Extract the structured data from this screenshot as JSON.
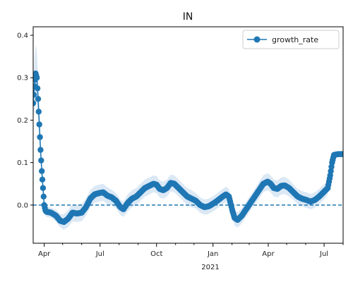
{
  "chart_data": {
    "type": "line",
    "title": "IN",
    "xlabel": "",
    "ylabel": "",
    "x_axis": {
      "type": "date",
      "range": [
        "2020-03-14",
        "2021-08-01"
      ],
      "ticks": [
        {
          "label": "Apr",
          "date": "2020-04-01"
        },
        {
          "label": "Jul",
          "date": "2020-07-01"
        },
        {
          "label": "Oct",
          "date": "2020-10-01"
        },
        {
          "label": "Jan",
          "date": "2021-01-01"
        },
        {
          "label": "Apr",
          "date": "2021-04-01"
        },
        {
          "label": "Jul",
          "date": "2021-07-01"
        }
      ],
      "year_label": "2021",
      "minor_ticks_monthly": true
    },
    "ylim": [
      -0.09,
      0.42
    ],
    "yticks": [
      {
        "label": "0.0",
        "value": 0.0
      },
      {
        "label": "0.1",
        "value": 0.1
      },
      {
        "label": "0.2",
        "value": 0.2
      },
      {
        "label": "0.3",
        "value": 0.3
      },
      {
        "label": "0.4",
        "value": 0.4
      }
    ],
    "reference_line": {
      "y": 0.0,
      "style": "dashed",
      "color": "#1f77b4"
    },
    "legend": {
      "position": "top-right",
      "entries": [
        "growth_rate"
      ]
    },
    "grid": false,
    "colors": {
      "series": "#1f77b4",
      "band": "#dbe8f5",
      "axis": "#000000"
    },
    "series": [
      {
        "name": "growth_rate",
        "marker": "circle",
        "points": [
          [
            "2020-03-14",
            0.24
          ],
          [
            "2020-03-16",
            0.28
          ],
          [
            "2020-03-18",
            0.31
          ],
          [
            "2020-03-20",
            0.3
          ],
          [
            "2020-03-22",
            0.25
          ],
          [
            "2020-03-24",
            0.19
          ],
          [
            "2020-03-26",
            0.13
          ],
          [
            "2020-03-28",
            0.08
          ],
          [
            "2020-03-30",
            0.04
          ],
          [
            "2020-04-01",
            0.0
          ],
          [
            "2020-04-03",
            -0.013
          ],
          [
            "2020-04-05",
            -0.016
          ],
          [
            "2020-04-12",
            -0.018
          ],
          [
            "2020-04-20",
            -0.025
          ],
          [
            "2020-04-27",
            -0.037
          ],
          [
            "2020-05-03",
            -0.04
          ],
          [
            "2020-05-10",
            -0.032
          ],
          [
            "2020-05-17",
            -0.018
          ],
          [
            "2020-05-24",
            -0.02
          ],
          [
            "2020-06-01",
            -0.018
          ],
          [
            "2020-06-08",
            -0.005
          ],
          [
            "2020-06-15",
            0.015
          ],
          [
            "2020-06-22",
            0.025
          ],
          [
            "2020-06-29",
            0.028
          ],
          [
            "2020-07-06",
            0.03
          ],
          [
            "2020-07-13",
            0.022
          ],
          [
            "2020-07-20",
            0.018
          ],
          [
            "2020-07-27",
            0.01
          ],
          [
            "2020-08-03",
            -0.005
          ],
          [
            "2020-08-08",
            -0.01
          ],
          [
            "2020-08-15",
            0.005
          ],
          [
            "2020-08-22",
            0.015
          ],
          [
            "2020-08-29",
            0.02
          ],
          [
            "2020-09-05",
            0.03
          ],
          [
            "2020-09-12",
            0.04
          ],
          [
            "2020-09-19",
            0.045
          ],
          [
            "2020-09-26",
            0.05
          ],
          [
            "2020-10-01",
            0.048
          ],
          [
            "2020-10-06",
            0.038
          ],
          [
            "2020-10-12",
            0.035
          ],
          [
            "2020-10-18",
            0.04
          ],
          [
            "2020-10-24",
            0.052
          ],
          [
            "2020-10-30",
            0.05
          ],
          [
            "2020-11-06",
            0.04
          ],
          [
            "2020-11-13",
            0.03
          ],
          [
            "2020-11-20",
            0.02
          ],
          [
            "2020-11-27",
            0.015
          ],
          [
            "2020-12-04",
            0.01
          ],
          [
            "2020-12-11",
            0.0
          ],
          [
            "2020-12-18",
            -0.005
          ],
          [
            "2020-12-25",
            -0.003
          ],
          [
            "2021-01-01",
            0.003
          ],
          [
            "2021-01-08",
            0.01
          ],
          [
            "2021-01-15",
            0.018
          ],
          [
            "2021-01-22",
            0.025
          ],
          [
            "2021-01-27",
            0.02
          ],
          [
            "2021-02-01",
            -0.01
          ],
          [
            "2021-02-05",
            -0.03
          ],
          [
            "2021-02-10",
            -0.035
          ],
          [
            "2021-02-17",
            -0.025
          ],
          [
            "2021-02-24",
            -0.01
          ],
          [
            "2021-03-03",
            0.005
          ],
          [
            "2021-03-10",
            0.02
          ],
          [
            "2021-03-17",
            0.035
          ],
          [
            "2021-03-24",
            0.05
          ],
          [
            "2021-03-31",
            0.055
          ],
          [
            "2021-04-05",
            0.05
          ],
          [
            "2021-04-10",
            0.04
          ],
          [
            "2021-04-16",
            0.038
          ],
          [
            "2021-04-22",
            0.045
          ],
          [
            "2021-04-28",
            0.046
          ],
          [
            "2021-05-05",
            0.04
          ],
          [
            "2021-05-12",
            0.03
          ],
          [
            "2021-05-19",
            0.02
          ],
          [
            "2021-05-26",
            0.015
          ],
          [
            "2021-06-02",
            0.012
          ],
          [
            "2021-06-09",
            0.008
          ],
          [
            "2021-06-16",
            0.012
          ],
          [
            "2021-06-23",
            0.02
          ],
          [
            "2021-06-30",
            0.03
          ],
          [
            "2021-07-07",
            0.04
          ],
          [
            "2021-07-11",
            0.07
          ],
          [
            "2021-07-14",
            0.1
          ],
          [
            "2021-07-17",
            0.118
          ],
          [
            "2021-07-24",
            0.12
          ],
          [
            "2021-08-01",
            0.12
          ]
        ],
        "uncertainty_halfwidth": [
          0.04,
          0.06,
          0.07,
          0.06,
          0.05,
          0.04,
          0.03,
          0.02,
          0.02,
          0.015,
          0.012,
          0.012,
          0.012,
          0.014,
          0.016,
          0.018,
          0.02,
          0.02,
          0.02,
          0.02,
          0.02,
          0.02,
          0.02,
          0.02,
          0.02,
          0.02,
          0.018,
          0.018,
          0.018,
          0.018,
          0.02,
          0.02,
          0.02,
          0.02,
          0.02,
          0.02,
          0.02,
          0.02,
          0.02,
          0.02,
          0.02,
          0.02,
          0.02,
          0.02,
          0.02,
          0.02,
          0.02,
          0.018,
          0.018,
          0.018,
          0.018,
          0.018,
          0.018,
          0.018,
          0.018,
          0.018,
          0.018,
          0.018,
          0.018,
          0.018,
          0.018,
          0.018,
          0.018,
          0.02,
          0.02,
          0.02,
          0.02,
          0.02,
          0.02,
          0.02,
          0.02,
          0.02,
          0.018,
          0.018,
          0.018,
          0.018,
          0.018,
          0.018,
          0.018,
          0.018,
          0.015,
          0.012,
          0.008,
          0.006,
          0.005,
          0.005
        ]
      }
    ]
  }
}
